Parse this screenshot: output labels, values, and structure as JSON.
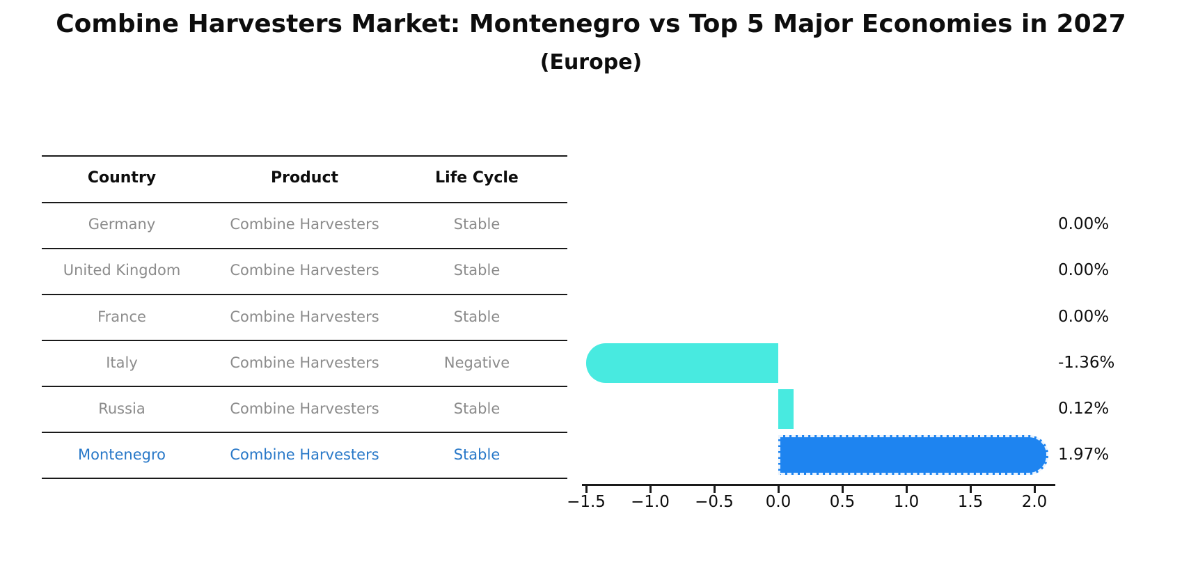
{
  "title": "Combine Harvesters Market: Montenegro vs Top 5 Major Economies in 2027",
  "subtitle": "(Europe)",
  "table": {
    "headers": [
      "Country",
      "Product",
      "Life Cycle"
    ],
    "rows": [
      {
        "country": "Germany",
        "product": "Combine Harvesters",
        "life_cycle": "Stable",
        "highlighted": false
      },
      {
        "country": "United Kingdom",
        "product": "Combine Harvesters",
        "life_cycle": "Stable",
        "highlighted": false
      },
      {
        "country": "France",
        "product": "Combine Harvesters",
        "life_cycle": "Stable",
        "highlighted": false
      },
      {
        "country": "Italy",
        "product": "Combine Harvesters",
        "life_cycle": "Negative",
        "highlighted": false
      },
      {
        "country": "Russia",
        "product": "Combine Harvesters",
        "life_cycle": "Stable",
        "highlighted": false
      },
      {
        "country": "Montenegro",
        "product": "Combine Harvesters",
        "life_cycle": "Stable",
        "highlighted": true
      }
    ]
  },
  "chart_data": {
    "type": "bar",
    "orientation": "horizontal",
    "title": "Combine Harvesters Market: Montenegro vs Top 5 Major Economies in 2027 (Europe)",
    "categories": [
      "Germany",
      "United Kingdom",
      "France",
      "Italy",
      "Russia",
      "Montenegro"
    ],
    "values": [
      0.0,
      0.0,
      0.0,
      -1.36,
      0.12,
      1.97
    ],
    "value_labels": [
      "0.00%",
      "0.00%",
      "0.00%",
      "-1.36%",
      "0.12%",
      "1.97%"
    ],
    "unit": "%",
    "xlim": [
      -1.53,
      2.16
    ],
    "xticks": [
      -1.5,
      -1.0,
      -0.5,
      0.0,
      0.5,
      1.0,
      1.5,
      2.0
    ],
    "xtick_labels": [
      "−1.5",
      "−1.0",
      "−0.5",
      "0.0",
      "0.5",
      "1.0",
      "1.5",
      "2.0"
    ],
    "grid": false,
    "legend": false,
    "highlight_index": 5
  },
  "colors": {
    "bar_default": "#48EAE0",
    "bar_highlight": "#1E84F0",
    "highlight_text": "#2878C8",
    "table_text": "#8B8B8B",
    "heading_text": "#0D0D0D",
    "line": "#1A1A1A"
  }
}
